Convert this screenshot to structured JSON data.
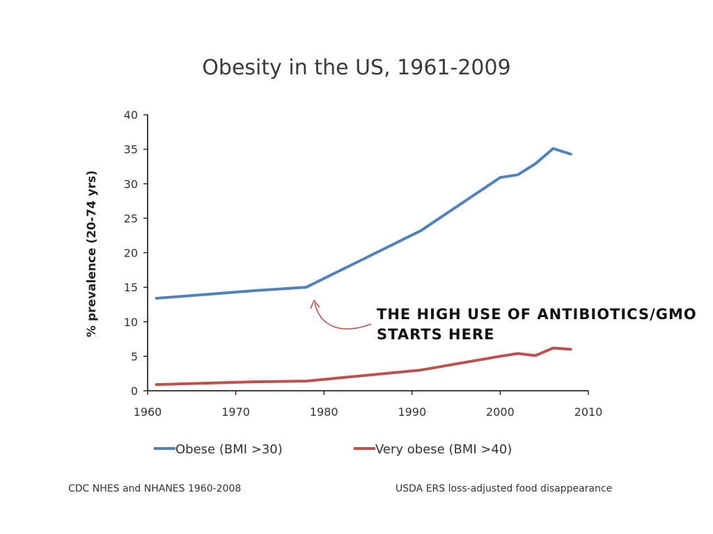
{
  "chart_data": {
    "type": "line",
    "title": "Obesity in the US, 1961-2009",
    "xlabel": "",
    "ylabel": "% prevalence (20-74 yrs)",
    "xlim": [
      1960,
      2010
    ],
    "ylim": [
      0,
      40
    ],
    "xticks": [
      1960,
      1970,
      1980,
      1990,
      2000,
      2010
    ],
    "yticks": [
      0,
      5,
      10,
      15,
      20,
      25,
      30,
      35,
      40
    ],
    "grid": false,
    "legend_position": "bottom",
    "series": [
      {
        "name": "Obese (BMI >30)",
        "color": "#4f81bd",
        "points": [
          [
            1961,
            13.4
          ],
          [
            1972,
            14.5
          ],
          [
            1978,
            15.0
          ],
          [
            1991,
            23.2
          ],
          [
            2000,
            30.9
          ],
          [
            2002,
            31.3
          ],
          [
            2004,
            32.9
          ],
          [
            2006,
            35.1
          ],
          [
            2008,
            34.3
          ]
        ]
      },
      {
        "name": "Very obese (BMI >40)",
        "color": "#c0504d",
        "points": [
          [
            1961,
            0.9
          ],
          [
            1972,
            1.3
          ],
          [
            1978,
            1.4
          ],
          [
            1991,
            3.0
          ],
          [
            2000,
            5.0
          ],
          [
            2002,
            5.4
          ],
          [
            2004,
            5.1
          ],
          [
            2006,
            6.2
          ],
          [
            2008,
            6.0
          ]
        ]
      }
    ],
    "annotation": {
      "text_line1": "THE HIGH USE OF ANTIBIOTICS/GMO",
      "text_line2": "STARTS HERE",
      "target_x": 1978,
      "arrow_color": "#c0504d"
    }
  },
  "sources": {
    "left": "CDC NHES and NHANES 1960-2008",
    "right": "USDA ERS loss-adjusted  food disappearance"
  }
}
